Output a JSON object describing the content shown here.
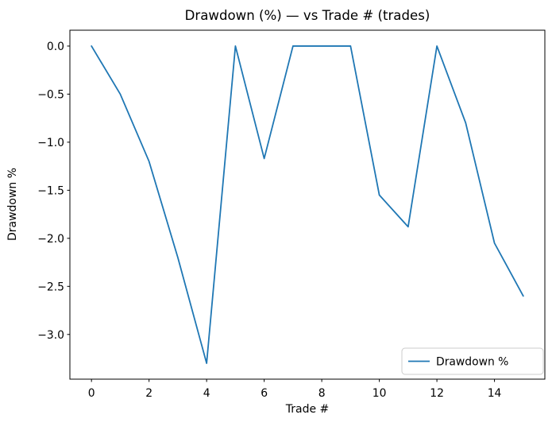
{
  "chart_data": {
    "type": "line",
    "title": "Drawdown (%) — vs Trade # (trades)",
    "xlabel": "Trade #",
    "ylabel": "Drawdown %",
    "x": [
      0,
      1,
      2,
      3,
      4,
      5,
      6,
      7,
      8,
      9,
      10,
      11,
      12,
      13,
      14,
      15
    ],
    "series": [
      {
        "name": "Drawdown %",
        "color": "#1f77b4",
        "values": [
          0.0,
          -0.5,
          -1.2,
          -2.2,
          -3.3,
          0.0,
          -1.17,
          0.0,
          0.0,
          0.0,
          -1.55,
          -1.88,
          0.0,
          -0.8,
          -2.05,
          -2.6
        ]
      }
    ],
    "xlim": [
      -0.75,
      15.75
    ],
    "ylim": [
      -3.465,
      0.165
    ],
    "xticks": [
      0,
      2,
      4,
      6,
      8,
      10,
      12,
      14
    ],
    "yticks": [
      0.0,
      -0.5,
      -1.0,
      -1.5,
      -2.0,
      -2.5,
      -3.0
    ],
    "grid": false,
    "legend": {
      "position": "lower right",
      "entries": [
        "Drawdown %"
      ]
    },
    "colors": {
      "line": "#1f77b4",
      "axes_edge": "#000000",
      "legend_edge": "#cccccc",
      "background": "#ffffff",
      "text": "#000000"
    }
  }
}
